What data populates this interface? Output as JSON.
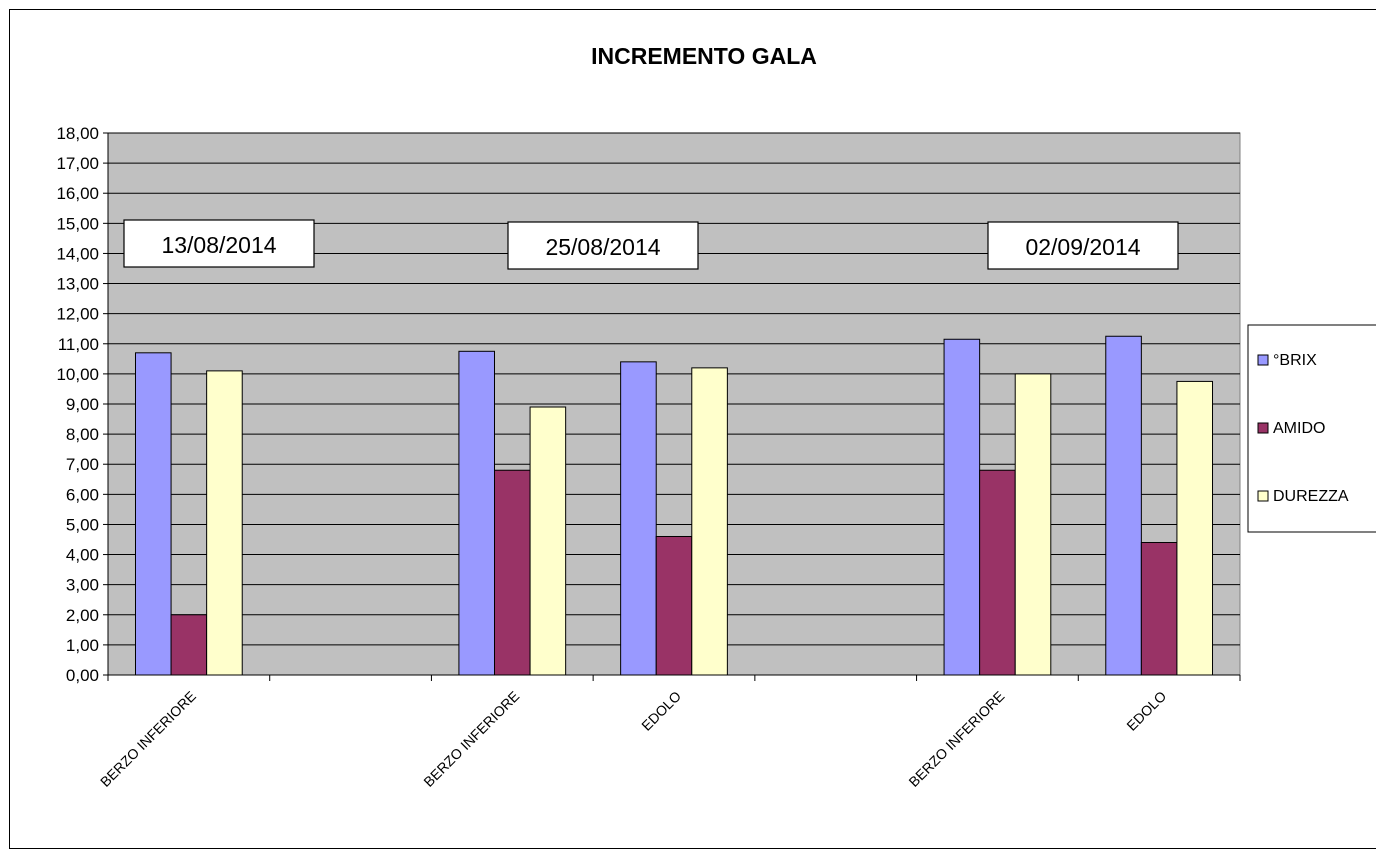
{
  "chart_data": {
    "type": "bar",
    "title": "INCREMENTO GALA",
    "xlabel": "",
    "ylabel": "",
    "ylim": [
      0,
      18
    ],
    "y_ticks": [
      "0,00",
      "1,00",
      "2,00",
      "3,00",
      "4,00",
      "5,00",
      "6,00",
      "7,00",
      "8,00",
      "9,00",
      "10,00",
      "11,00",
      "12,00",
      "13,00",
      "14,00",
      "15,00",
      "16,00",
      "17,00",
      "18,00"
    ],
    "categories": [
      "BERZO INFERIORE",
      "",
      "BERZO INFERIORE",
      "EDOLO",
      "",
      "BERZO INFERIORE",
      "EDOLO"
    ],
    "series": [
      {
        "name": "°BRIX",
        "color": "#9999ff",
        "values": [
          10.7,
          null,
          10.75,
          10.4,
          null,
          11.15,
          11.25
        ]
      },
      {
        "name": "AMIDO",
        "color": "#993366",
        "values": [
          2.0,
          null,
          6.8,
          4.6,
          null,
          6.8,
          4.4
        ]
      },
      {
        "name": "DUREZZA",
        "color": "#ffffcc",
        "values": [
          10.1,
          null,
          8.9,
          10.2,
          null,
          10.0,
          9.75
        ]
      }
    ],
    "date_labels": [
      "13/08/2014",
      "25/08/2014",
      "02/09/2014"
    ],
    "plot_background": "#c0c0c0",
    "grid": true,
    "legend_position": "right"
  }
}
